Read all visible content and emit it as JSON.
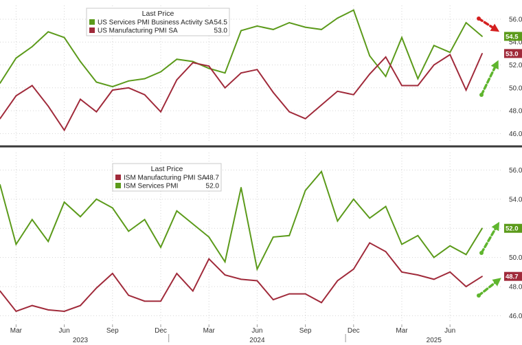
{
  "chart_data": [
    {
      "type": "line",
      "legend_title": "Last Price",
      "legend_position": "top-left",
      "ylim": [
        45.3,
        57.2
      ],
      "yticks": [
        "46.0",
        "48.0",
        "50.0",
        "52.0",
        "54.0",
        "56.0"
      ],
      "grid": true,
      "series": [
        {
          "name": "US Services PMI Business Activity SA",
          "last": "54.5",
          "color": "#5b9a1a",
          "values": [
            50.4,
            52.6,
            53.6,
            54.9,
            54.4,
            52.3,
            50.5,
            50.1,
            50.6,
            50.8,
            51.4,
            52.5,
            52.3,
            51.7,
            51.3,
            55.0,
            55.4,
            55.1,
            55.7,
            55.3,
            55.1,
            56.1,
            56.8,
            52.8,
            51.0,
            54.4,
            50.8,
            53.7,
            53.1,
            55.7,
            54.5
          ]
        },
        {
          "name": "US Manufacturing PMI SA",
          "last": "53.0",
          "color": "#a02a3a",
          "values": [
            47.3,
            49.3,
            50.2,
            48.4,
            46.3,
            49.0,
            47.9,
            49.8,
            50.0,
            49.4,
            47.9,
            50.7,
            52.2,
            51.9,
            50.0,
            51.3,
            51.6,
            49.6,
            47.9,
            47.3,
            48.5,
            49.7,
            49.4,
            51.2,
            52.7,
            50.2,
            50.2,
            52.0,
            52.9,
            49.8,
            53.0
          ]
        }
      ]
    },
    {
      "type": "line",
      "legend_title": "Last Price",
      "legend_position": "top-left",
      "ylim": [
        45.5,
        57.2
      ],
      "yticks": [
        "46.0",
        "48.0",
        "50.0",
        "52.0",
        "54.0",
        "56.0"
      ],
      "grid": true,
      "series": [
        {
          "name": "ISM Manufacturing PMI SA",
          "last": "48.7",
          "color": "#a02a3a",
          "values": [
            47.7,
            46.3,
            46.7,
            46.4,
            46.3,
            46.7,
            47.9,
            48.9,
            47.4,
            47.0,
            47.0,
            48.9,
            47.7,
            49.9,
            48.8,
            48.5,
            48.4,
            47.1,
            47.5,
            47.5,
            46.9,
            48.4,
            49.2,
            51.0,
            50.4,
            49.0,
            48.8,
            48.5,
            49.0,
            48.0,
            48.7
          ]
        },
        {
          "name": "ISM Services PMI",
          "last": "52.0",
          "color": "#5b9a1a",
          "values": [
            55.0,
            50.9,
            52.6,
            51.1,
            53.8,
            52.8,
            54.0,
            53.4,
            51.8,
            52.6,
            50.7,
            53.2,
            52.3,
            51.4,
            49.7,
            54.8,
            49.2,
            51.4,
            51.5,
            54.6,
            55.9,
            52.5,
            54.0,
            52.7,
            53.5,
            50.9,
            51.5,
            50.0,
            50.8,
            50.2,
            52.0
          ]
        }
      ]
    }
  ],
  "x_axis": {
    "months": [
      "Mar",
      "Jun",
      "Sep",
      "Dec",
      "Mar",
      "Jun",
      "Sep",
      "Dec",
      "Mar",
      "Jun"
    ],
    "years": [
      "2023",
      "2024",
      "2025"
    ]
  }
}
